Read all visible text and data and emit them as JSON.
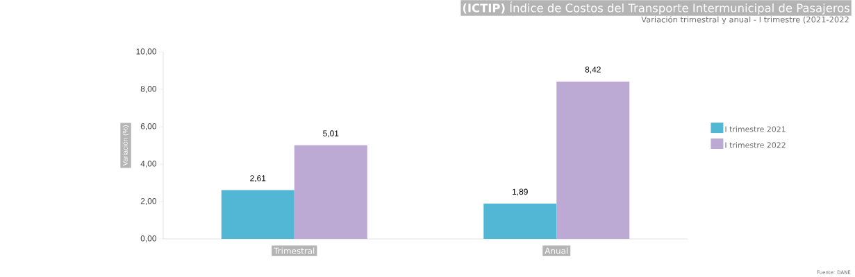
{
  "chart_data": {
    "type": "bar",
    "title": "**(ICTIP)** Índice de Costos del Transporte Intermunicipal de Pasajeros",
    "subtitle": "Variación trimestral y anual - I trimestre  (2021-2022",
    "ylabel": "Variación (%)",
    "annotations": [
      "Fuente: DANE"
    ],
    "categories": [
      "Trimestral",
      "Anual"
    ],
    "series": [
      {
        "name": "I trimestre 2021",
        "color": "#52b7d5",
        "values": [
          2.61,
          1.89
        ],
        "value_labels": [
          "2,61",
          "1,89"
        ]
      },
      {
        "name": "I trimestre 2022",
        "color": "#bdaad4",
        "values": [
          5.01,
          8.42
        ],
        "value_labels": [
          "5,01",
          "8,42"
        ]
      }
    ],
    "ylim": [
      0,
      10
    ],
    "yticks": [
      {
        "value": 0,
        "label": "0,00"
      },
      {
        "value": 2,
        "label": "2,00"
      },
      {
        "value": 4,
        "label": "4,00"
      },
      {
        "value": 6,
        "label": "6,00"
      },
      {
        "value": 8,
        "label": "8,00"
      },
      {
        "value": 10,
        "label": "10,00"
      }
    ],
    "grid": false,
    "legend": "right"
  }
}
